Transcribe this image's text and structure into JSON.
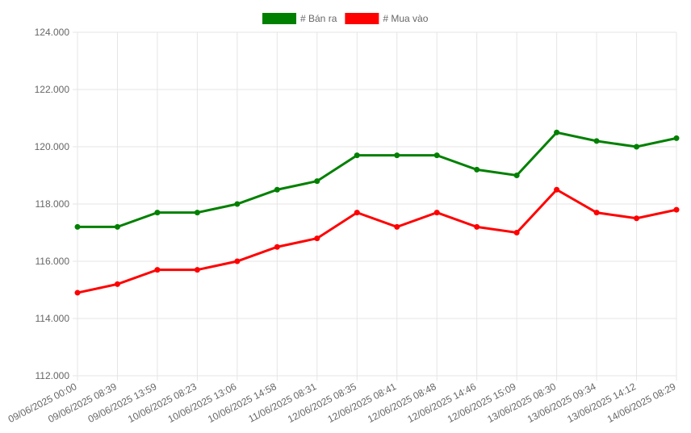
{
  "chart_data": {
    "type": "line",
    "categories": [
      "09/06/2025 00:00",
      "09/06/2025 08:39",
      "09/06/2025 13:59",
      "10/06/2025 08:23",
      "10/06/2025 13:06",
      "10/06/2025 14:58",
      "11/06/2025 08:31",
      "12/06/2025 08:35",
      "12/06/2025 08:41",
      "12/06/2025 08:48",
      "12/06/2025 14:46",
      "12/06/2025 15:09",
      "13/06/2025 08:30",
      "13/06/2025 09:34",
      "13/06/2025 14:12",
      "14/06/2025 08:29"
    ],
    "series": [
      {
        "name": "# Bán ra",
        "color": "#008000",
        "values": [
          117200,
          117200,
          117700,
          117700,
          118000,
          118500,
          118800,
          119700,
          119700,
          119700,
          119200,
          119000,
          120500,
          120200,
          120000,
          120300
        ]
      },
      {
        "name": "# Mua vào",
        "color": "#ff0000",
        "values": [
          114900,
          115200,
          115700,
          115700,
          116000,
          116500,
          116800,
          117700,
          117200,
          117700,
          117200,
          117000,
          118500,
          117700,
          117500,
          117800
        ]
      }
    ],
    "ylim": [
      112000,
      124000
    ],
    "yticks": [
      {
        "value": 112000,
        "label": "112.000"
      },
      {
        "value": 114000,
        "label": "114.000"
      },
      {
        "value": 116000,
        "label": "116.000"
      },
      {
        "value": 118000,
        "label": "118.000"
      },
      {
        "value": 120000,
        "label": "120.000"
      },
      {
        "value": 122000,
        "label": "122.000"
      },
      {
        "value": 124000,
        "label": "124.000"
      }
    ],
    "grid": true,
    "legend": "top"
  }
}
